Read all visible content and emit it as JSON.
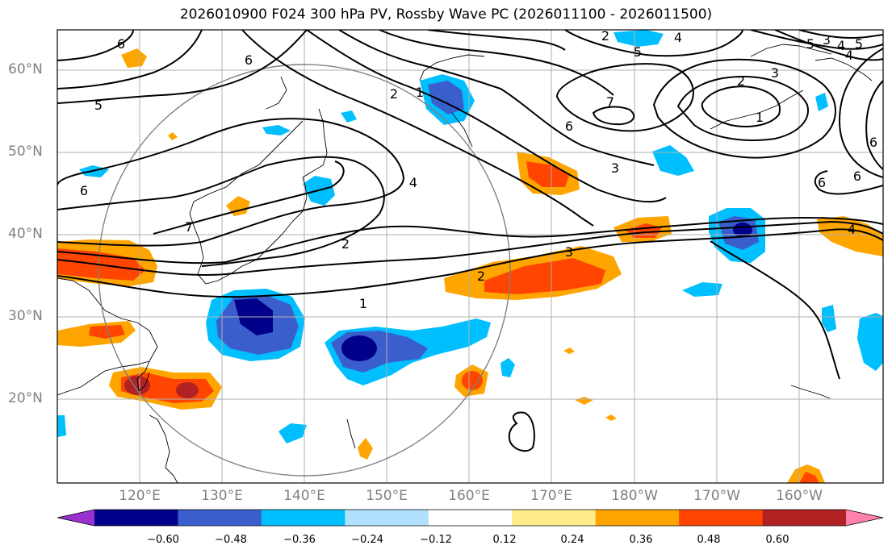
{
  "title": "2026010900 F024 300 hPa PV, Rossby Wave PC (2026011100 - 2026011500)",
  "lat_labels": [
    "60°N",
    "50°N",
    "40°N",
    "30°N",
    "20°N"
  ],
  "lon_labels": [
    "120°E",
    "130°E",
    "140°E",
    "150°E",
    "160°E",
    "170°E",
    "180°W",
    "170°W",
    "160°W"
  ],
  "colorbar": {
    "colors": [
      "#9932cc",
      "#00008b",
      "#3a5fcd",
      "#00bfff",
      "#b0e2ff",
      "#ffffff",
      "#ffec8b",
      "#ffa500",
      "#ff4500",
      "#b22222",
      "#ff82ab"
    ],
    "labels": [
      "−0.60",
      "−0.48",
      "−0.36",
      "−0.24",
      "−0.12",
      "0.12",
      "0.24",
      "0.36",
      "0.48",
      "0.60"
    ]
  },
  "contour_labels": [
    "1",
    "2",
    "3",
    "4",
    "5",
    "6",
    "7",
    "2",
    "3",
    "4",
    "5",
    "6",
    "7",
    "1",
    "2",
    "3",
    "4",
    "5",
    "6",
    "2",
    "4",
    "5",
    "6",
    "6",
    "1",
    "6",
    "6",
    "2",
    "3",
    "4"
  ]
}
